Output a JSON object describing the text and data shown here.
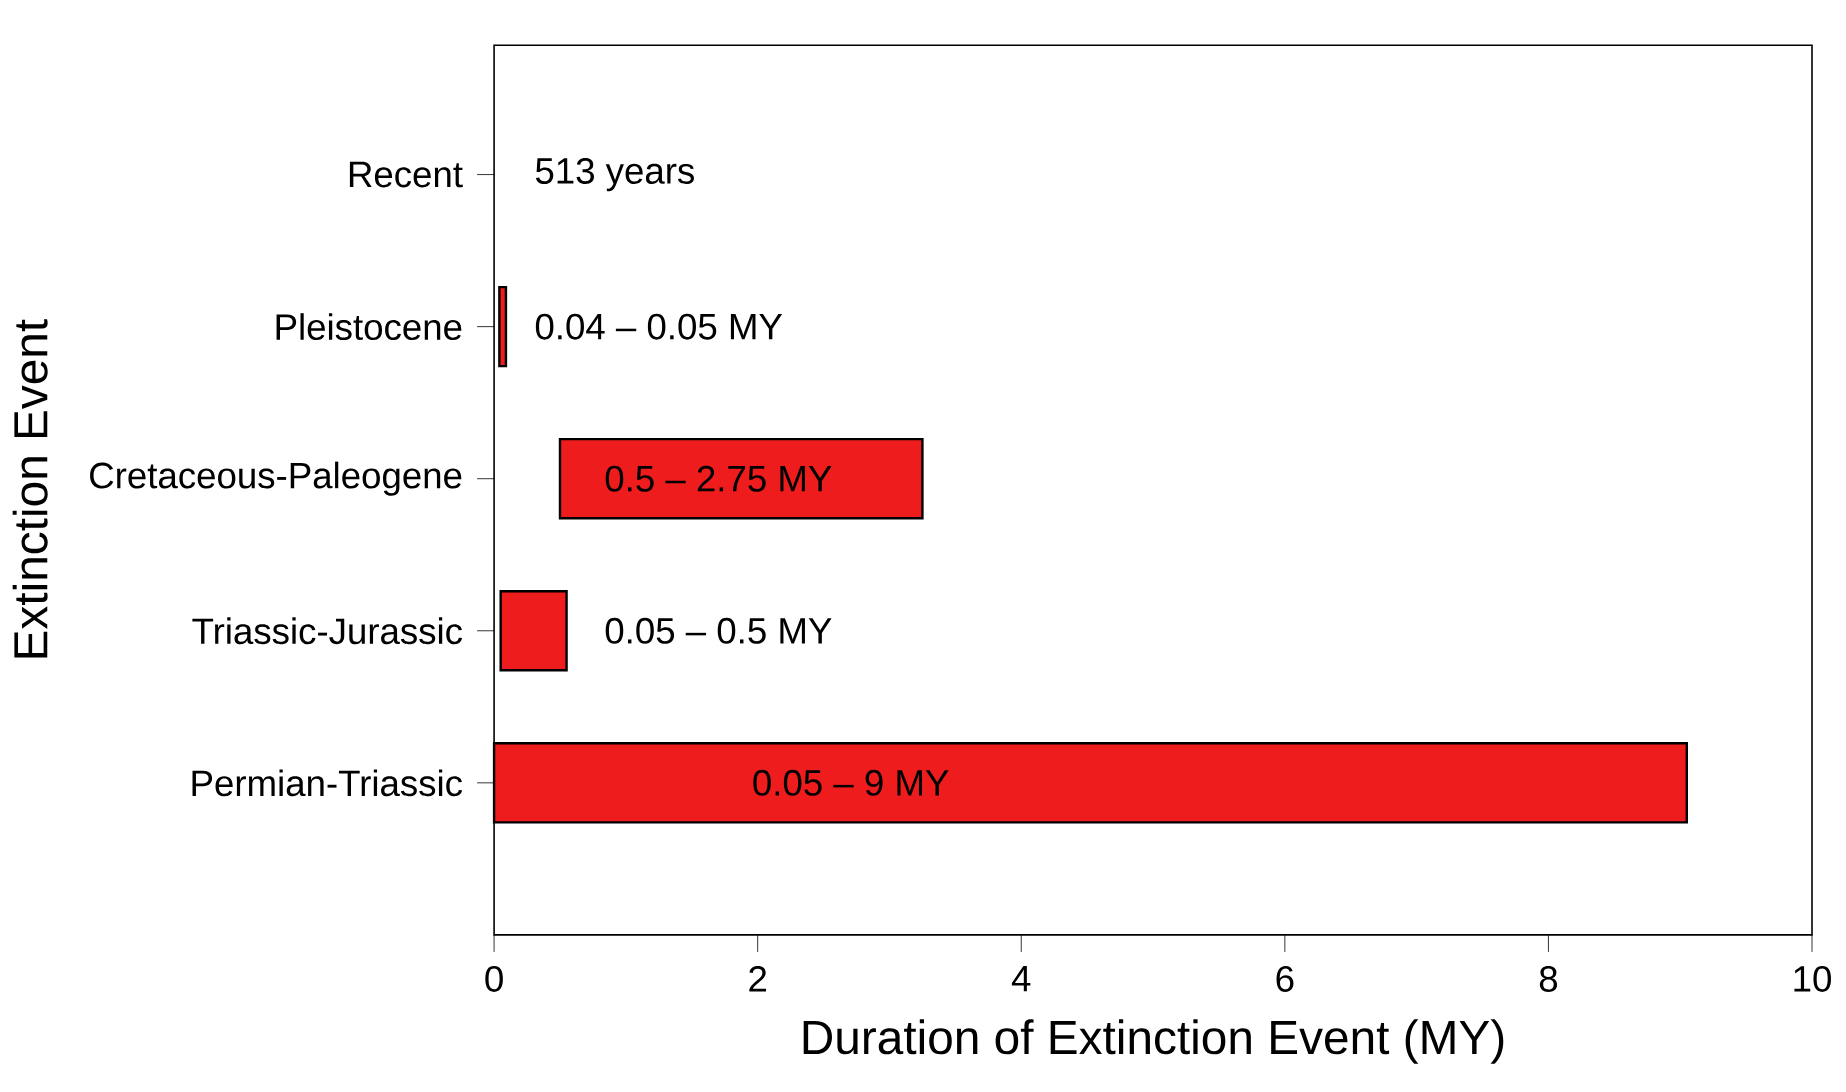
{
  "chart_data": {
    "type": "bar",
    "orientation": "horizontal",
    "xlabel": "Duration of Extinction Event (MY)",
    "ylabel": "Extinction Event",
    "categories": [
      "Recent",
      "Pleistocene",
      "Cretaceous-Paleogene",
      "Triassic-Jurassic",
      "Permian-Triassic"
    ],
    "base": [
      null,
      0.04,
      0.5,
      0.05,
      0
    ],
    "values": [
      null,
      0.05,
      2.75,
      0.5,
      9.05
    ],
    "color": "#ee1c1c",
    "xlim": [
      0,
      10
    ],
    "xticks": [
      0,
      2,
      4,
      6,
      8,
      10
    ],
    "grid": false,
    "annotations": [
      "513 years",
      "0.04 – 0.05 MY",
      "0.5 – 2.75 MY",
      "0.05 – 0.5 MY",
      "0.05 – 9 MY"
    ]
  }
}
